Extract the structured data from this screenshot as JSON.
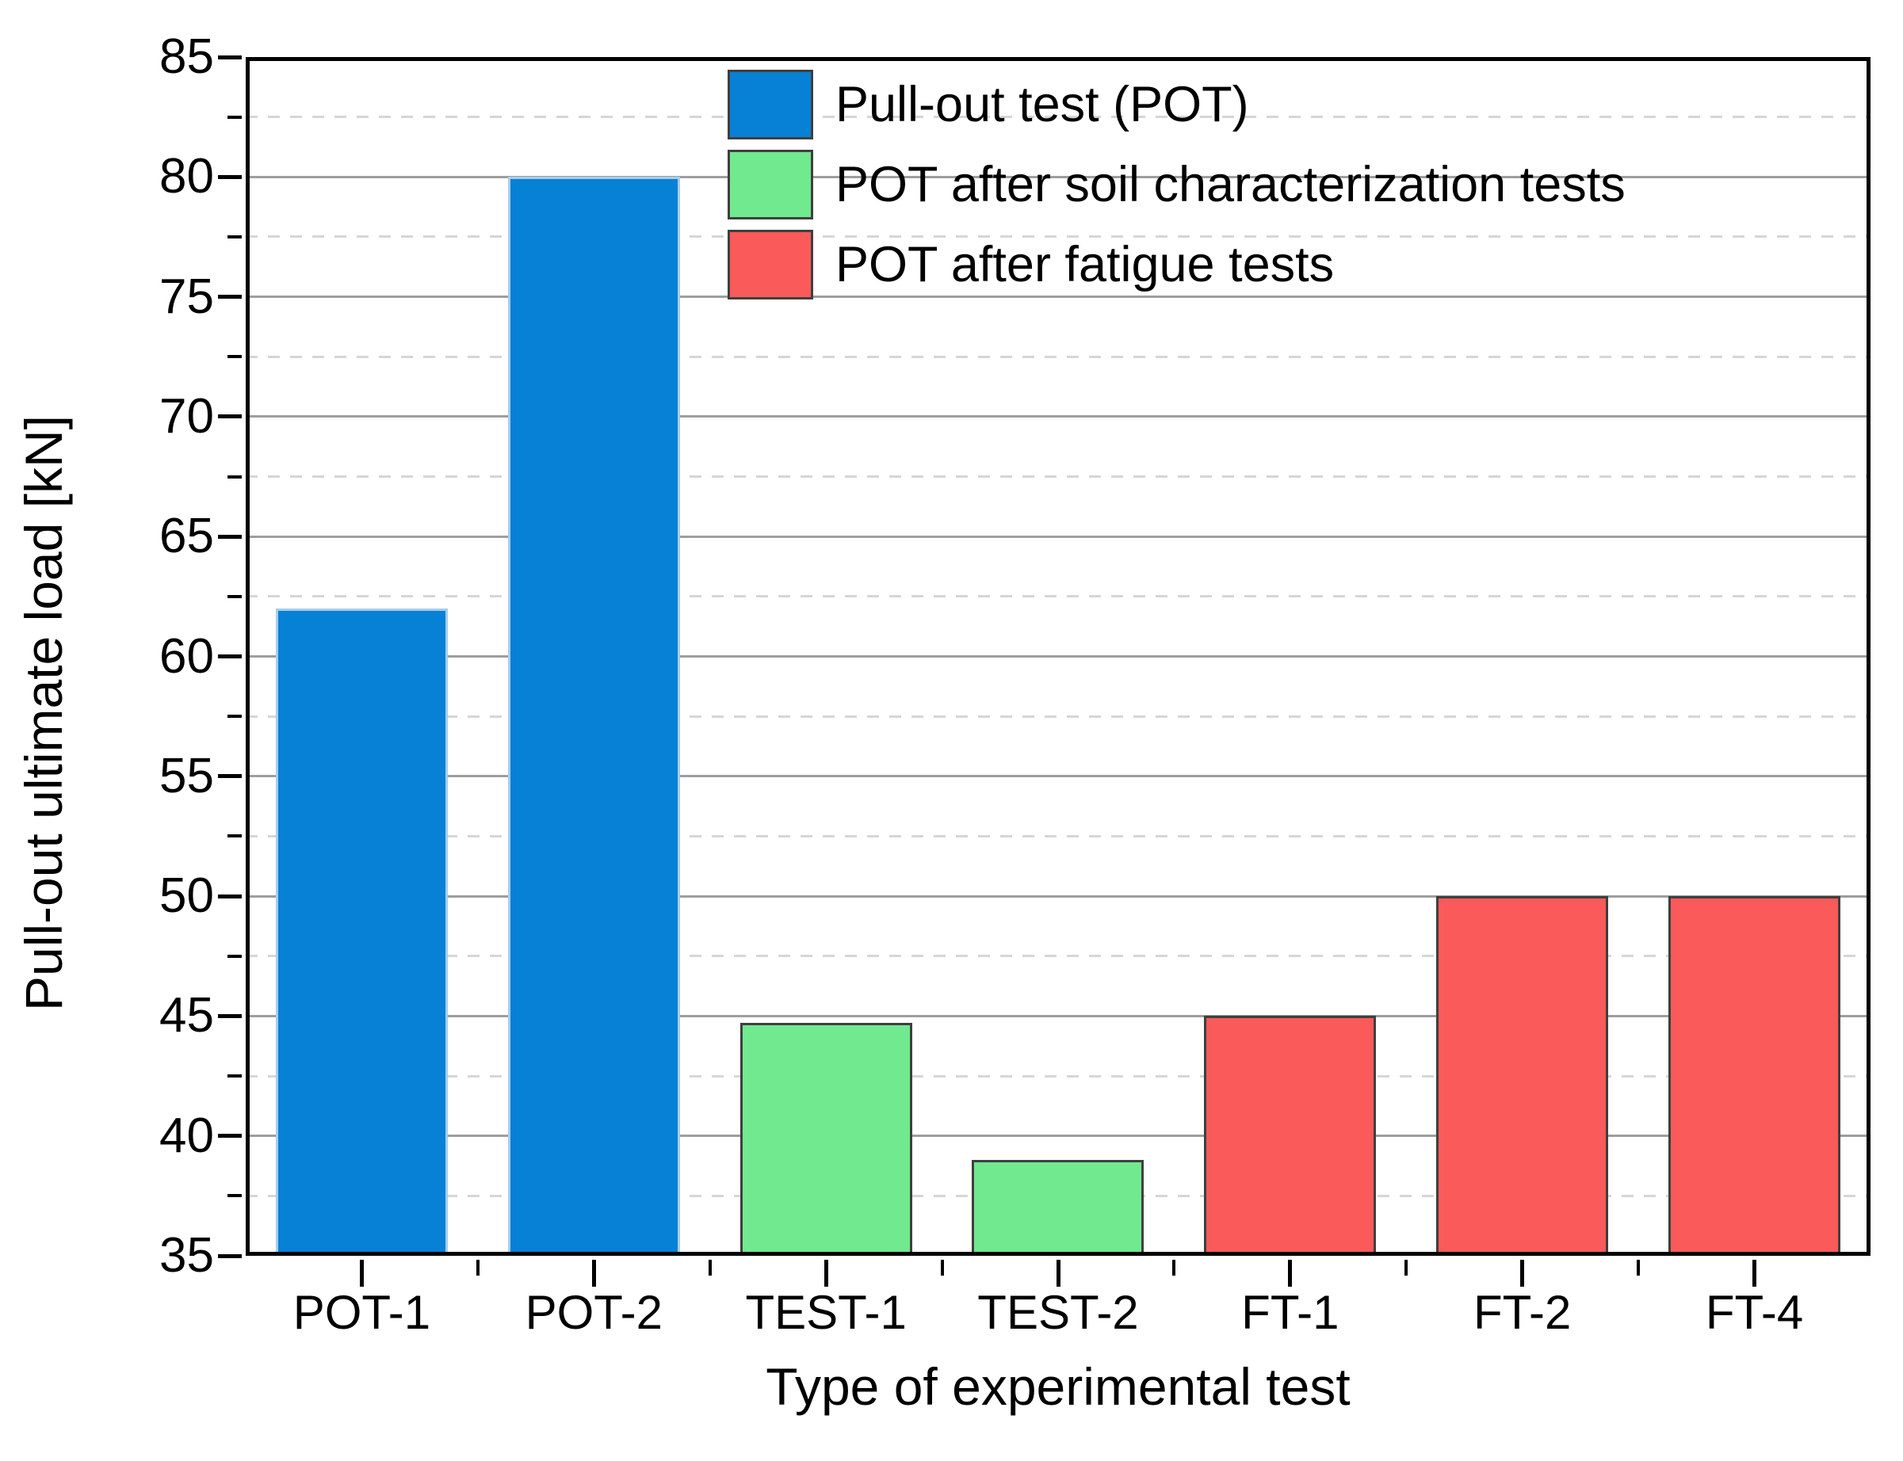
{
  "chart_data": {
    "type": "bar",
    "title": "",
    "xlabel": "Type of experimental test",
    "ylabel": "Pull-out ultimate load [kN]",
    "categories": [
      "POT-1",
      "POT-2",
      "TEST-1",
      "TEST-2",
      "FT-1",
      "FT-2",
      "FT-4"
    ],
    "values": [
      62,
      80,
      44.7,
      39,
      45,
      50,
      50
    ],
    "bar_series_index": [
      0,
      0,
      1,
      1,
      2,
      2,
      2
    ],
    "series": [
      {
        "name": "Pull-out test (POT)",
        "color": "#0781d6",
        "border_color": "#a8cdec"
      },
      {
        "name": "POT after soil characterization tests",
        "color": "#70e98f",
        "border_color": "#3f3f3f"
      },
      {
        "name": "POT after fatigue tests",
        "color": "#fa5a5a",
        "border_color": "#3f3f3f"
      }
    ],
    "ylim": [
      35,
      85
    ],
    "y_major_step": 5,
    "y_minor_step": 2.5,
    "y_tick_labels": [
      "35",
      "40",
      "45",
      "50",
      "55",
      "60",
      "65",
      "70",
      "75",
      "80",
      "85"
    ],
    "grid": {
      "major_style": "solid",
      "minor_style": "dashed",
      "major_color": "#9e9e9e",
      "minor_color": "#d6d6d6"
    },
    "legend_position": "top-inside",
    "axis_color": "#000000",
    "background_color": "#ffffff"
  }
}
